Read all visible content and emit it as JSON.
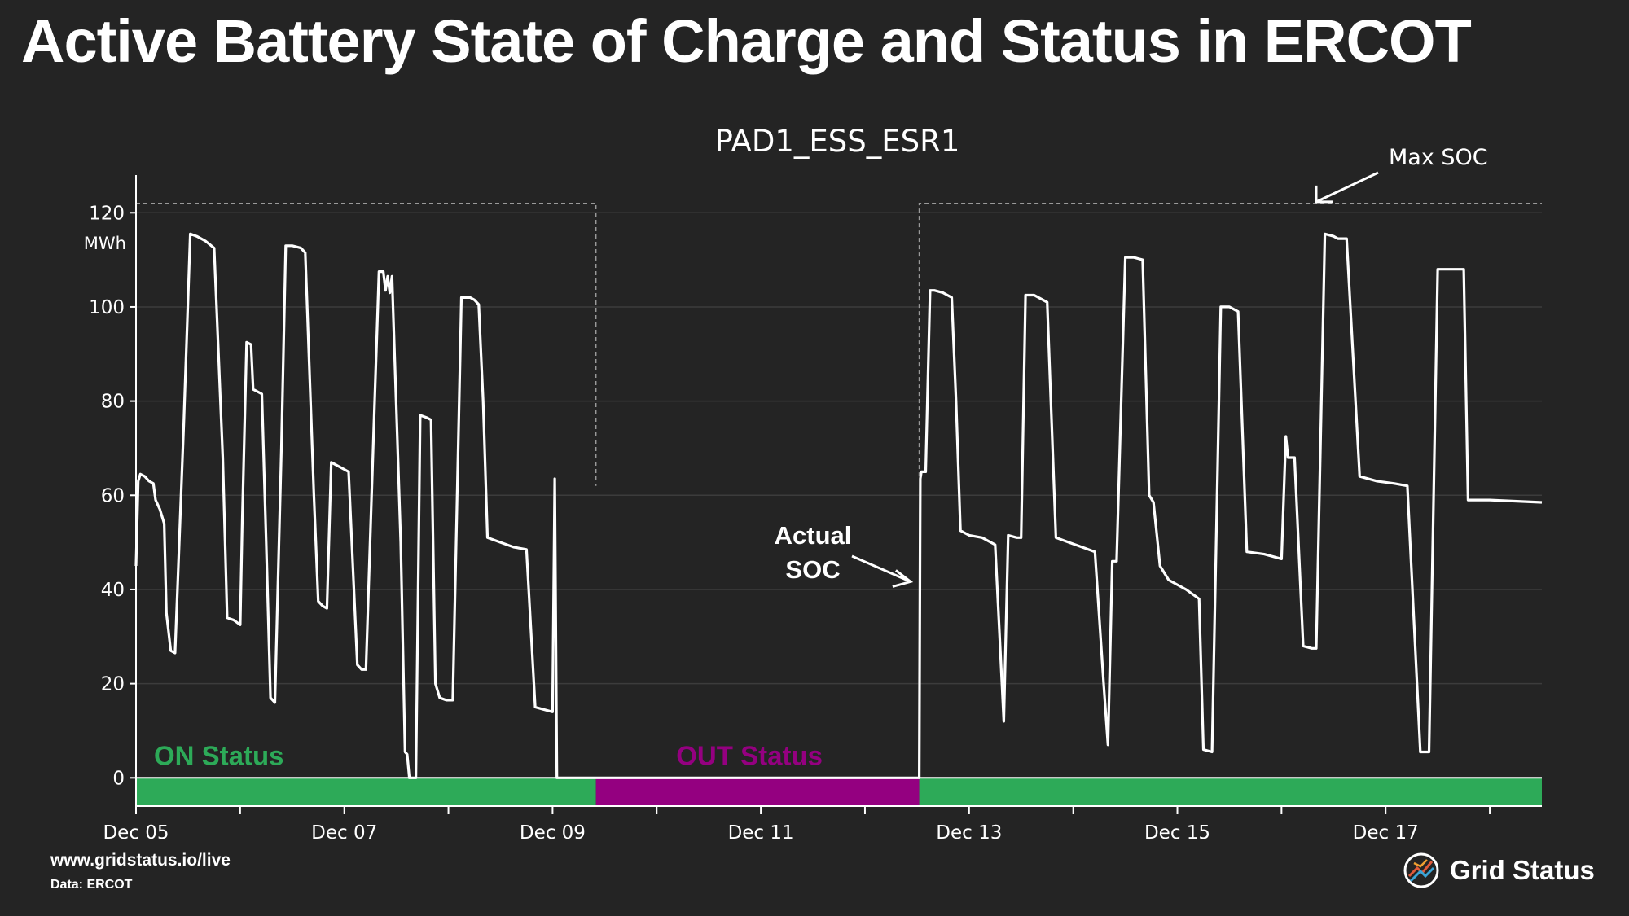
{
  "header": {
    "title": "Active Battery State of Charge and Status in ERCOT"
  },
  "footer": {
    "url": "www.gridstatus.io/live",
    "source": "Data: ERCOT",
    "brand": "Grid Status"
  },
  "colors": {
    "background": "#242424",
    "line": "#ffffff",
    "on_status": "#2daa58",
    "out_status": "#940080",
    "grid": "#3c3c3c",
    "max_soc_line": "#9a9a9a"
  },
  "icons": {
    "logo": "grid-status-logo-icon"
  },
  "chart_data": {
    "type": "line",
    "title": "PAD1_ESS_ESR1",
    "ylabel": "MWh",
    "ylim": [
      -6,
      128
    ],
    "yticks": [
      0,
      20,
      40,
      60,
      80,
      100,
      120
    ],
    "xlim": [
      "2023-12-05 00:00",
      "2023-12-18 12:00"
    ],
    "xticks": [
      "2023-12-05",
      "2023-12-07",
      "2023-12-09",
      "2023-12-11",
      "2023-12-13",
      "2023-12-15",
      "2023-12-17"
    ],
    "xtick_labels": [
      "Dec 05",
      "Dec 07",
      "Dec 09",
      "Dec 11",
      "Dec 13",
      "Dec 15",
      "Dec 17"
    ],
    "grid": true,
    "max_soc": {
      "value": 122,
      "label": "Max SOC",
      "segments": [
        [
          "2023-12-05 00:00",
          "2023-12-09 10:00"
        ],
        [
          "2023-12-12 12:30",
          "2023-12-18 12:00"
        ]
      ]
    },
    "status_bands": [
      {
        "label": "ON Status",
        "status": "ON",
        "start": "2023-12-05 00:00",
        "end": "2023-12-09 10:00"
      },
      {
        "label": "OUT Status",
        "status": "OUT",
        "start": "2023-12-09 10:00",
        "end": "2023-12-12 12:30"
      },
      {
        "label": "",
        "status": "ON",
        "start": "2023-12-12 12:30",
        "end": "2023-12-18 12:00"
      }
    ],
    "annotations": [
      {
        "text_lines": [
          "Actual",
          "SOC"
        ],
        "target": [
          "2023-12-12 12:00",
          42
        ]
      },
      {
        "text_lines": [
          "Max SOC"
        ],
        "target": [
          "2023-12-16 08:00",
          123
        ]
      }
    ],
    "series": [
      {
        "name": "Actual SOC",
        "points": [
          [
            "2023-12-05 00:00",
            45
          ],
          [
            "2023-12-05 00:30",
            63
          ],
          [
            "2023-12-05 01:00",
            64.5
          ],
          [
            "2023-12-05 02:00",
            64
          ],
          [
            "2023-12-05 03:00",
            63
          ],
          [
            "2023-12-05 04:00",
            62.5
          ],
          [
            "2023-12-05 04:30",
            59
          ],
          [
            "2023-12-05 05:30",
            57
          ],
          [
            "2023-12-05 06:30",
            54
          ],
          [
            "2023-12-05 07:00",
            35
          ],
          [
            "2023-12-05 08:00",
            27
          ],
          [
            "2023-12-05 09:00",
            26.5
          ],
          [
            "2023-12-05 11:00",
            75
          ],
          [
            "2023-12-05 12:30",
            115.5
          ],
          [
            "2023-12-05 14:00",
            115
          ],
          [
            "2023-12-05 16:00",
            114
          ],
          [
            "2023-12-05 18:00",
            112.5
          ],
          [
            "2023-12-05 20:00",
            68
          ],
          [
            "2023-12-05 21:00",
            34
          ],
          [
            "2023-12-05 22:30",
            33.5
          ],
          [
            "2023-12-06 00:00",
            32.5
          ],
          [
            "2023-12-06 00:30",
            55
          ],
          [
            "2023-12-06 01:30",
            92.5
          ],
          [
            "2023-12-06 02:30",
            92
          ],
          [
            "2023-12-06 03:00",
            82.5
          ],
          [
            "2023-12-06 04:00",
            82
          ],
          [
            "2023-12-06 05:00",
            81.5
          ],
          [
            "2023-12-06 06:00",
            50
          ],
          [
            "2023-12-06 07:00",
            17
          ],
          [
            "2023-12-06 08:00",
            16
          ],
          [
            "2023-12-06 09:30",
            70
          ],
          [
            "2023-12-06 10:30",
            113
          ],
          [
            "2023-12-06 12:00",
            113
          ],
          [
            "2023-12-06 14:00",
            112.5
          ],
          [
            "2023-12-06 15:00",
            111.5
          ],
          [
            "2023-12-06 17:00",
            60
          ],
          [
            "2023-12-06 18:00",
            37.5
          ],
          [
            "2023-12-06 19:00",
            36.5
          ],
          [
            "2023-12-06 20:00",
            36
          ],
          [
            "2023-12-06 21:00",
            67
          ],
          [
            "2023-12-06 22:00",
            66.5
          ],
          [
            "2023-12-07 00:00",
            65.5
          ],
          [
            "2023-12-07 01:00",
            65
          ],
          [
            "2023-12-07 03:00",
            24
          ],
          [
            "2023-12-07 04:00",
            23
          ],
          [
            "2023-12-07 05:00",
            23
          ],
          [
            "2023-12-07 07:00",
            80
          ],
          [
            "2023-12-07 08:00",
            107.5
          ],
          [
            "2023-12-07 09:00",
            107.5
          ],
          [
            "2023-12-07 09:30",
            103.5
          ],
          [
            "2023-12-07 10:00",
            106.5
          ],
          [
            "2023-12-07 10:30",
            103
          ],
          [
            "2023-12-07 11:00",
            106.5
          ],
          [
            "2023-12-07 13:00",
            50
          ],
          [
            "2023-12-07 14:00",
            5.5
          ],
          [
            "2023-12-07 14:30",
            5
          ],
          [
            "2023-12-07 15:00",
            0
          ],
          [
            "2023-12-07 16:30",
            0
          ],
          [
            "2023-12-07 17:30",
            77
          ],
          [
            "2023-12-07 19:00",
            76.5
          ],
          [
            "2023-12-07 20:00",
            76
          ],
          [
            "2023-12-07 21:00",
            20
          ],
          [
            "2023-12-07 22:00",
            17
          ],
          [
            "2023-12-07 23:30",
            16.5
          ],
          [
            "2023-12-08 01:00",
            16.5
          ],
          [
            "2023-12-08 03:00",
            102
          ],
          [
            "2023-12-08 05:00",
            102
          ],
          [
            "2023-12-08 06:00",
            101.5
          ],
          [
            "2023-12-08 07:00",
            100.5
          ],
          [
            "2023-12-08 08:00",
            80
          ],
          [
            "2023-12-08 09:00",
            51
          ],
          [
            "2023-12-08 12:00",
            50
          ],
          [
            "2023-12-08 15:00",
            49
          ],
          [
            "2023-12-08 18:00",
            48.5
          ],
          [
            "2023-12-08 20:00",
            15
          ],
          [
            "2023-12-08 22:00",
            14.5
          ],
          [
            "2023-12-09 00:00",
            14
          ],
          [
            "2023-12-09 00:30",
            63.5
          ],
          [
            "2023-12-09 01:00",
            0
          ],
          [
            "2023-12-12 12:30",
            0
          ],
          [
            "2023-12-12 12:45",
            63.5
          ],
          [
            "2023-12-12 13:00",
            65
          ],
          [
            "2023-12-12 14:00",
            65
          ],
          [
            "2023-12-12 15:00",
            103.5
          ],
          [
            "2023-12-12 16:00",
            103.5
          ],
          [
            "2023-12-12 18:00",
            103
          ],
          [
            "2023-12-12 20:00",
            102
          ],
          [
            "2023-12-12 21:00",
            80
          ],
          [
            "2023-12-12 22:00",
            52.5
          ],
          [
            "2023-12-13 00:00",
            51.5
          ],
          [
            "2023-12-13 03:00",
            51
          ],
          [
            "2023-12-13 06:00",
            49.5
          ],
          [
            "2023-12-13 08:00",
            12
          ],
          [
            "2023-12-13 09:00",
            51.5
          ],
          [
            "2023-12-13 11:00",
            51
          ],
          [
            "2023-12-13 12:00",
            51
          ],
          [
            "2023-12-13 13:00",
            102.5
          ],
          [
            "2023-12-13 15:00",
            102.5
          ],
          [
            "2023-12-13 17:00",
            101.5
          ],
          [
            "2023-12-13 18:00",
            101
          ],
          [
            "2023-12-13 20:00",
            51
          ],
          [
            "2023-12-13 23:00",
            50
          ],
          [
            "2023-12-14 02:00",
            49
          ],
          [
            "2023-12-14 05:00",
            48
          ],
          [
            "2023-12-14 07:00",
            20
          ],
          [
            "2023-12-14 08:00",
            7
          ],
          [
            "2023-12-14 09:00",
            46
          ],
          [
            "2023-12-14 10:00",
            46
          ],
          [
            "2023-12-14 12:00",
            110.5
          ],
          [
            "2023-12-14 14:00",
            110.5
          ],
          [
            "2023-12-14 16:00",
            110
          ],
          [
            "2023-12-14 17:30",
            60
          ],
          [
            "2023-12-14 18:30",
            58.5
          ],
          [
            "2023-12-14 20:00",
            45
          ],
          [
            "2023-12-14 22:00",
            42
          ],
          [
            "2023-12-15 02:00",
            40
          ],
          [
            "2023-12-15 05:00",
            38
          ],
          [
            "2023-12-15 06:00",
            6
          ],
          [
            "2023-12-15 08:00",
            5.5
          ],
          [
            "2023-12-15 10:00",
            100
          ],
          [
            "2023-12-15 12:00",
            100
          ],
          [
            "2023-12-15 14:00",
            99
          ],
          [
            "2023-12-15 16:00",
            48
          ],
          [
            "2023-12-15 20:00",
            47.5
          ],
          [
            "2023-12-16 00:00",
            46.5
          ],
          [
            "2023-12-16 01:00",
            72.5
          ],
          [
            "2023-12-16 01:30",
            68
          ],
          [
            "2023-12-16 03:00",
            68
          ],
          [
            "2023-12-16 05:00",
            28
          ],
          [
            "2023-12-16 07:00",
            27.5
          ],
          [
            "2023-12-16 08:00",
            27.5
          ],
          [
            "2023-12-16 10:00",
            115.5
          ],
          [
            "2023-12-16 12:00",
            115
          ],
          [
            "2023-12-16 13:00",
            114.5
          ],
          [
            "2023-12-16 15:00",
            114.5
          ],
          [
            "2023-12-16 18:00",
            64
          ],
          [
            "2023-12-16 22:00",
            63
          ],
          [
            "2023-12-17 02:00",
            62.5
          ],
          [
            "2023-12-17 05:00",
            62
          ],
          [
            "2023-12-17 08:00",
            5.5
          ],
          [
            "2023-12-17 10:00",
            5.5
          ],
          [
            "2023-12-17 12:00",
            108
          ],
          [
            "2023-12-17 15:00",
            108
          ],
          [
            "2023-12-17 18:00",
            108
          ],
          [
            "2023-12-17 19:00",
            59
          ],
          [
            "2023-12-18 00:00",
            59
          ],
          [
            "2023-12-18 12:00",
            58.5
          ]
        ]
      }
    ]
  }
}
